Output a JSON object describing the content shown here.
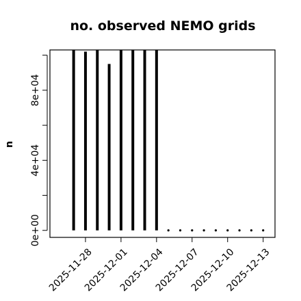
{
  "chart_data": {
    "type": "bar",
    "title": "no. observed NEMO grids",
    "ylabel": "n",
    "xlabel": "",
    "x": [
      "2025-11-27",
      "2025-11-28",
      "2025-11-29",
      "2025-11-30",
      "2025-12-01",
      "2025-12-02",
      "2025-12-03",
      "2025-12-04",
      "2025-12-05",
      "2025-12-06",
      "2025-12-07",
      "2025-12-08",
      "2025-12-09",
      "2025-12-10",
      "2025-12-11",
      "2025-12-12",
      "2025-12-13"
    ],
    "values": [
      103000,
      102000,
      103000,
      95000,
      103000,
      103000,
      103000,
      103000,
      0,
      0,
      0,
      0,
      0,
      0,
      0,
      0,
      0
    ],
    "xlim": [
      "2025-11-25",
      "2025-12-14"
    ],
    "ylim": [
      -4000,
      103000
    ],
    "x_tick_labels": [
      "2025-11-28",
      "2025-12-01",
      "2025-12-04",
      "2025-12-07",
      "2025-12-10",
      "2025-12-13"
    ],
    "y_ticks": [
      0,
      20000,
      40000,
      60000,
      80000,
      100000
    ],
    "y_tick_labels": [
      "0e+00",
      "",
      "4e+04",
      "",
      "8e+04",
      ""
    ]
  }
}
